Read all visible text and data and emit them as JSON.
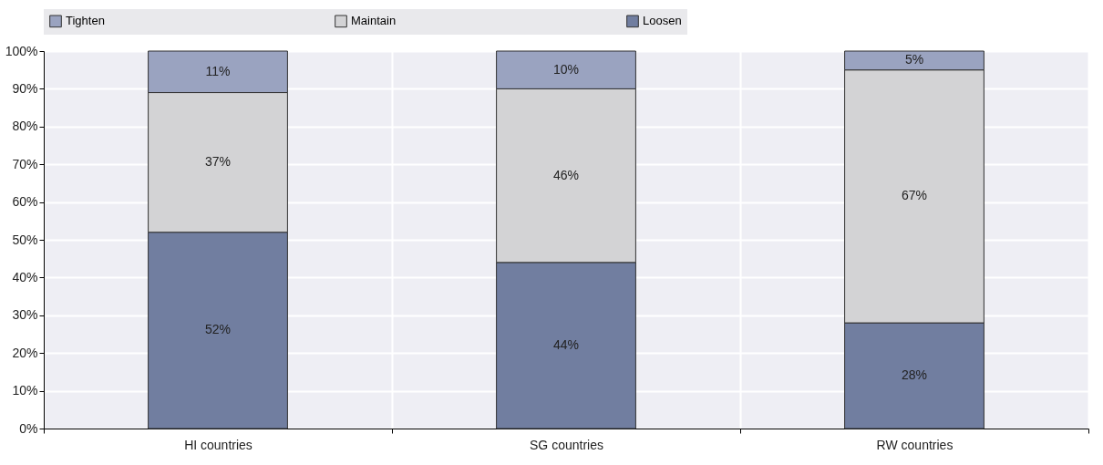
{
  "chart_data": {
    "type": "bar",
    "stacked": true,
    "categories": [
      "HI countries",
      "SG countries",
      "RW countries"
    ],
    "series": [
      {
        "name": "Loosen",
        "color": "#717ea0",
        "values": [
          52,
          44,
          28
        ],
        "value_labels": [
          "52%",
          "44%",
          "28%"
        ]
      },
      {
        "name": "Maintain",
        "color": "#d3d3d5",
        "values": [
          37,
          46,
          67
        ],
        "value_labels": [
          "37%",
          "46%",
          "67%"
        ]
      },
      {
        "name": "Tighten",
        "color": "#9aa3c0",
        "values": [
          11,
          10,
          5
        ],
        "value_labels": [
          "11%",
          "10%",
          "5%"
        ]
      }
    ],
    "ylim": [
      0,
      100
    ],
    "yticks": [
      {
        "value": 0,
        "label": "0%"
      },
      {
        "value": 10,
        "label": "10%"
      },
      {
        "value": 20,
        "label": "20%"
      },
      {
        "value": 30,
        "label": "30%"
      },
      {
        "value": 40,
        "label": "40%"
      },
      {
        "value": 50,
        "label": "50%"
      },
      {
        "value": 60,
        "label": "60%"
      },
      {
        "value": 70,
        "label": "70%"
      },
      {
        "value": 80,
        "label": "80%"
      },
      {
        "value": 90,
        "label": "90%"
      },
      {
        "value": 100,
        "label": "100%"
      }
    ],
    "grid": true,
    "legend": "top"
  }
}
